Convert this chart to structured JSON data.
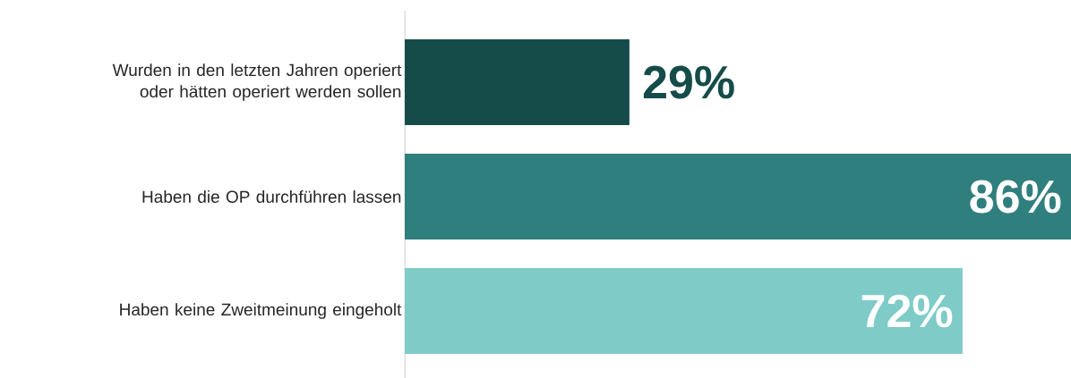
{
  "chart_data": {
    "type": "bar",
    "orientation": "horizontal",
    "categories": [
      "Wurden in den letzten Jahren operiert oder hätten operiert werden sollen",
      "Haben die OP durchführen lassen",
      "Haben keine Zweitmeinung eingeholt"
    ],
    "values": [
      29,
      86,
      72
    ],
    "colors": [
      "#154c4a",
      "#2f7f7e",
      "#7fcbc8"
    ],
    "value_labels": [
      "29%",
      "86%",
      "72%"
    ]
  }
}
